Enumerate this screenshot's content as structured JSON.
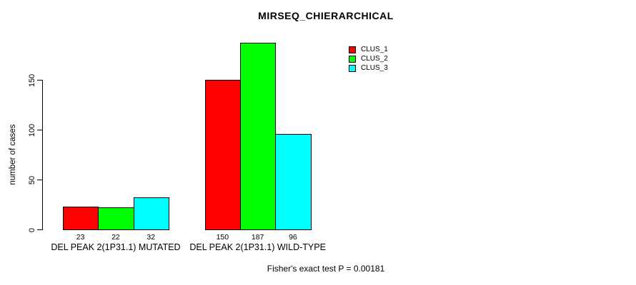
{
  "title": "MIRSEQ_CHIERARCHICAL",
  "footer": "Fisher's exact test P = 0.00181",
  "chart_data": {
    "type": "bar",
    "title": "MIRSEQ_CHIERARCHICAL",
    "xlabel": "",
    "ylabel": "number of cases",
    "ylim": [
      0,
      187
    ],
    "yticks": [
      0,
      50,
      100,
      150
    ],
    "grid": false,
    "legend_position": "top-right",
    "show_value_labels": true,
    "categories": [
      "DEL PEAK  2(1P31.1) MUTATED",
      "DEL PEAK  2(1P31.1) WILD-TYPE"
    ],
    "series": [
      {
        "name": "CLUS_1",
        "color": "#ff0000",
        "values": [
          23,
          150
        ]
      },
      {
        "name": "CLUS_2",
        "color": "#00ff00",
        "values": [
          22,
          187
        ]
      },
      {
        "name": "CLUS_3",
        "color": "#00ffff",
        "values": [
          32,
          96
        ]
      }
    ],
    "annotation": "Fisher's exact test P = 0.00181",
    "background_color": "#ffffff",
    "axis_color": "#000000"
  }
}
